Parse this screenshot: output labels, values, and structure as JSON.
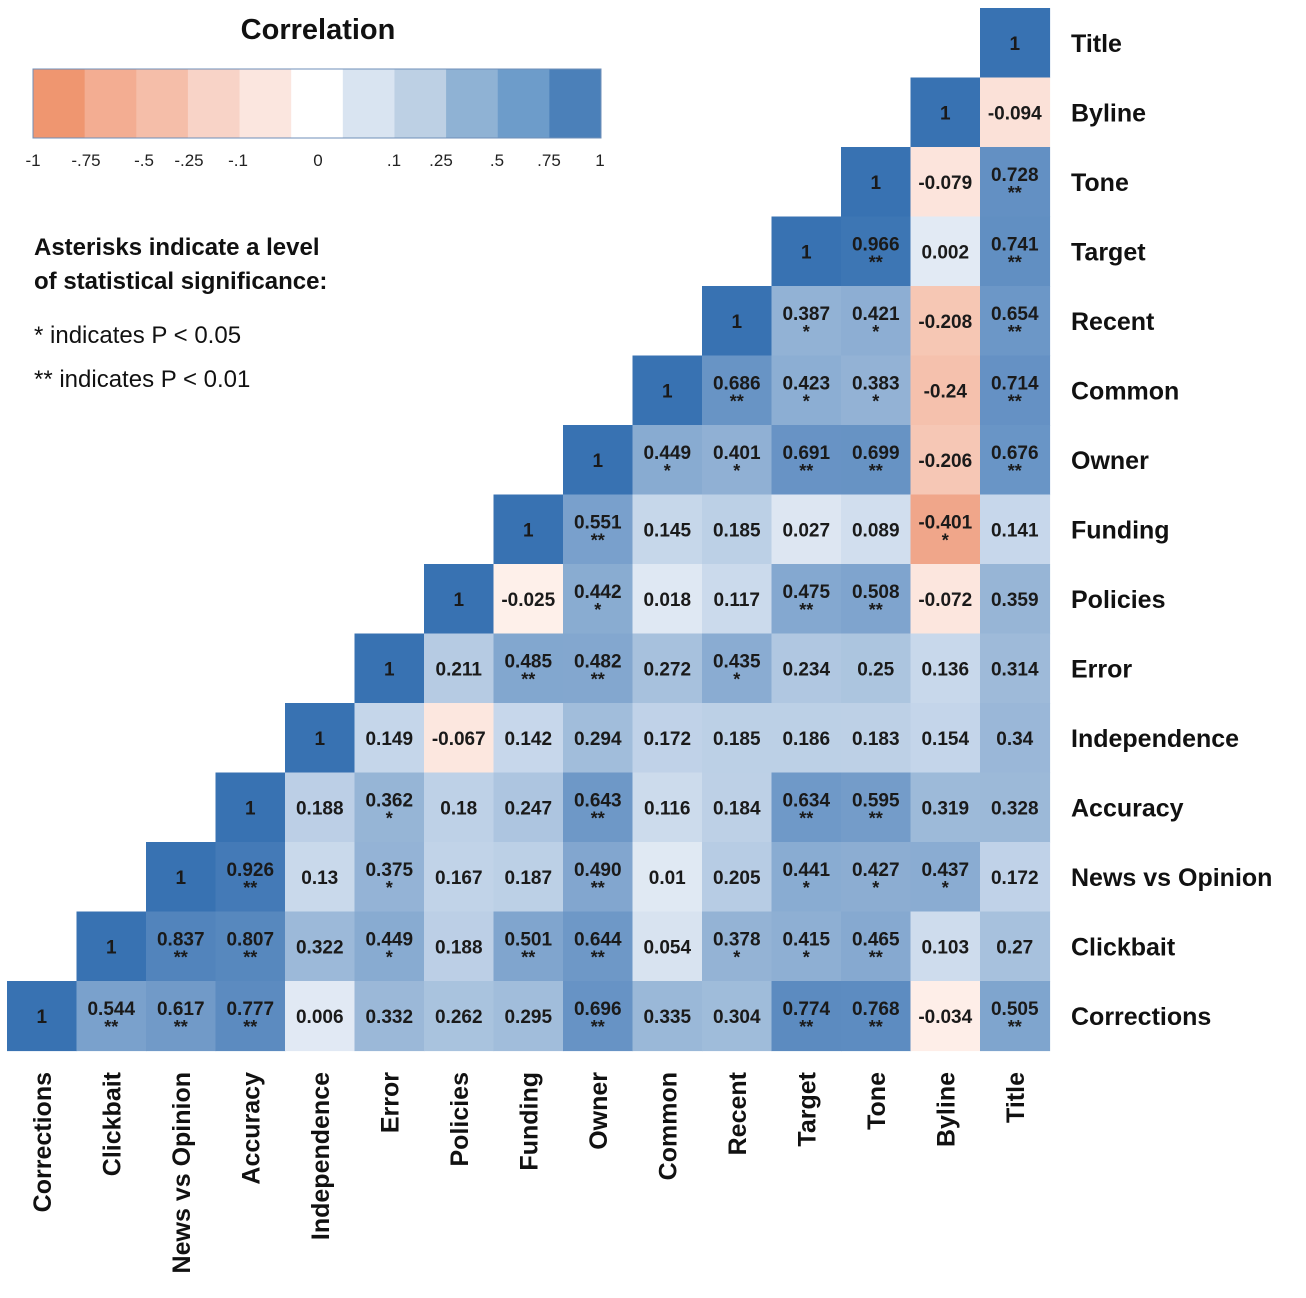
{
  "chart_data": {
    "type": "heatmap",
    "legend": {
      "title": "Correlation",
      "tick_labels": [
        "-1",
        "-.75",
        "-.5",
        "-.25",
        "-.1",
        "0",
        ".1",
        ".25",
        ".5",
        ".75",
        "1"
      ],
      "colors": [
        "#ef9670",
        "#f3ad92",
        "#f5bea9",
        "#f8d3c7",
        "#fbe6df",
        "#ffffff",
        "#d9e4f1",
        "#bdd0e4",
        "#8fb2d4",
        "#6d9cca",
        "#4b80b9"
      ]
    },
    "notes": {
      "title_line1": "Asterisks indicate a level",
      "title_line2": "of statistical significance:",
      "line1": "* indicates P < 0.05",
      "line2": "** indicates P < 0.01"
    },
    "columns": [
      "Corrections",
      "Clickbait",
      "News vs Opinion",
      "Accuracy",
      "Independence",
      "Error",
      "Policies",
      "Funding",
      "Owner",
      "Common",
      "Recent",
      "Target",
      "Tone",
      "Byline",
      "Title"
    ],
    "rows": [
      "Title",
      "Byline",
      "Tone",
      "Target",
      "Recent",
      "Common",
      "Owner",
      "Funding",
      "Policies",
      "Error",
      "Independence",
      "Accuracy",
      "News vs Opinion",
      "Clickbait",
      "Corrections"
    ],
    "cells": [
      [
        null,
        null,
        null,
        null,
        null,
        null,
        null,
        null,
        null,
        null,
        null,
        null,
        null,
        null,
        [
          "1",
          ""
        ]
      ],
      [
        null,
        null,
        null,
        null,
        null,
        null,
        null,
        null,
        null,
        null,
        null,
        null,
        null,
        [
          "1",
          ""
        ],
        [
          "-0.094",
          ""
        ]
      ],
      [
        null,
        null,
        null,
        null,
        null,
        null,
        null,
        null,
        null,
        null,
        null,
        null,
        [
          "1",
          ""
        ],
        [
          "-0.079",
          ""
        ],
        [
          "0.728",
          "**"
        ]
      ],
      [
        null,
        null,
        null,
        null,
        null,
        null,
        null,
        null,
        null,
        null,
        null,
        [
          "1",
          ""
        ],
        [
          "0.966",
          "**"
        ],
        [
          "0.002",
          ""
        ],
        [
          "0.741",
          "**"
        ]
      ],
      [
        null,
        null,
        null,
        null,
        null,
        null,
        null,
        null,
        null,
        null,
        [
          "1",
          ""
        ],
        [
          "0.387",
          "*"
        ],
        [
          "0.421",
          "*"
        ],
        [
          "-0.208",
          ""
        ],
        [
          "0.654",
          "**"
        ]
      ],
      [
        null,
        null,
        null,
        null,
        null,
        null,
        null,
        null,
        null,
        [
          "1",
          ""
        ],
        [
          "0.686",
          "**"
        ],
        [
          "0.423",
          "*"
        ],
        [
          "0.383",
          "*"
        ],
        [
          "-0.24",
          ""
        ],
        [
          "0.714",
          "**"
        ]
      ],
      [
        null,
        null,
        null,
        null,
        null,
        null,
        null,
        null,
        [
          "1",
          ""
        ],
        [
          "0.449",
          "*"
        ],
        [
          "0.401",
          "*"
        ],
        [
          "0.691",
          "**"
        ],
        [
          "0.699",
          "**"
        ],
        [
          "-0.206",
          ""
        ],
        [
          "0.676",
          "**"
        ]
      ],
      [
        null,
        null,
        null,
        null,
        null,
        null,
        null,
        [
          "1",
          ""
        ],
        [
          "0.551",
          "**"
        ],
        [
          "0.145",
          ""
        ],
        [
          "0.185",
          ""
        ],
        [
          "0.027",
          ""
        ],
        [
          "0.089",
          ""
        ],
        [
          "-0.401",
          "*"
        ],
        [
          "0.141",
          ""
        ]
      ],
      [
        null,
        null,
        null,
        null,
        null,
        null,
        [
          "1",
          ""
        ],
        [
          "-0.025",
          ""
        ],
        [
          "0.442",
          "*"
        ],
        [
          "0.018",
          ""
        ],
        [
          "0.117",
          ""
        ],
        [
          "0.475",
          "**"
        ],
        [
          "0.508",
          "**"
        ],
        [
          "-0.072",
          ""
        ],
        [
          "0.359",
          ""
        ]
      ],
      [
        null,
        null,
        null,
        null,
        null,
        [
          "1",
          ""
        ],
        [
          "0.211",
          ""
        ],
        [
          "0.485",
          "**"
        ],
        [
          "0.482",
          "**"
        ],
        [
          "0.272",
          ""
        ],
        [
          "0.435",
          "*"
        ],
        [
          "0.234",
          ""
        ],
        [
          "0.25",
          ""
        ],
        [
          "0.136",
          ""
        ],
        [
          "0.314",
          ""
        ]
      ],
      [
        null,
        null,
        null,
        null,
        [
          "1",
          ""
        ],
        [
          "0.149",
          ""
        ],
        [
          "-0.067",
          ""
        ],
        [
          "0.142",
          ""
        ],
        [
          "0.294",
          ""
        ],
        [
          "0.172",
          ""
        ],
        [
          "0.185",
          ""
        ],
        [
          "0.186",
          ""
        ],
        [
          "0.183",
          ""
        ],
        [
          "0.154",
          ""
        ],
        [
          "0.34",
          ""
        ]
      ],
      [
        null,
        null,
        null,
        [
          "1",
          ""
        ],
        [
          "0.188",
          ""
        ],
        [
          "0.362",
          "*"
        ],
        [
          "0.18",
          ""
        ],
        [
          "0.247",
          ""
        ],
        [
          "0.643",
          "**"
        ],
        [
          "0.116",
          ""
        ],
        [
          "0.184",
          ""
        ],
        [
          "0.634",
          "**"
        ],
        [
          "0.595",
          "**"
        ],
        [
          "0.319",
          ""
        ],
        [
          "0.328",
          ""
        ]
      ],
      [
        null,
        null,
        [
          "1",
          ""
        ],
        [
          "0.926",
          "**"
        ],
        [
          "0.13",
          ""
        ],
        [
          "0.375",
          "*"
        ],
        [
          "0.167",
          ""
        ],
        [
          "0.187",
          ""
        ],
        [
          "0.490",
          "**"
        ],
        [
          "0.01",
          ""
        ],
        [
          "0.205",
          ""
        ],
        [
          "0.441",
          "*"
        ],
        [
          "0.427",
          "*"
        ],
        [
          "0.437",
          "*"
        ],
        [
          "0.172",
          ""
        ]
      ],
      [
        null,
        [
          "1",
          ""
        ],
        [
          "0.837",
          "**"
        ],
        [
          "0.807",
          "**"
        ],
        [
          "0.322",
          ""
        ],
        [
          "0.449",
          "*"
        ],
        [
          "0.188",
          ""
        ],
        [
          "0.501",
          "**"
        ],
        [
          "0.644",
          "**"
        ],
        [
          "0.054",
          ""
        ],
        [
          "0.378",
          "*"
        ],
        [
          "0.415",
          "*"
        ],
        [
          "0.465",
          "**"
        ],
        [
          "0.103",
          ""
        ],
        [
          "0.27",
          ""
        ]
      ],
      [
        [
          "1",
          ""
        ],
        [
          "0.544",
          "**"
        ],
        [
          "0.617",
          "**"
        ],
        [
          "0.777",
          "**"
        ],
        [
          "0.006",
          ""
        ],
        [
          "0.332",
          ""
        ],
        [
          "0.262",
          ""
        ],
        [
          "0.295",
          ""
        ],
        [
          "0.696",
          "**"
        ],
        [
          "0.335",
          ""
        ],
        [
          "0.304",
          ""
        ],
        [
          "0.774",
          "**"
        ],
        [
          "0.768",
          "**"
        ],
        [
          "-0.034",
          ""
        ],
        [
          "0.505",
          "**"
        ]
      ]
    ],
    "xlabel": "",
    "ylabel": ""
  }
}
